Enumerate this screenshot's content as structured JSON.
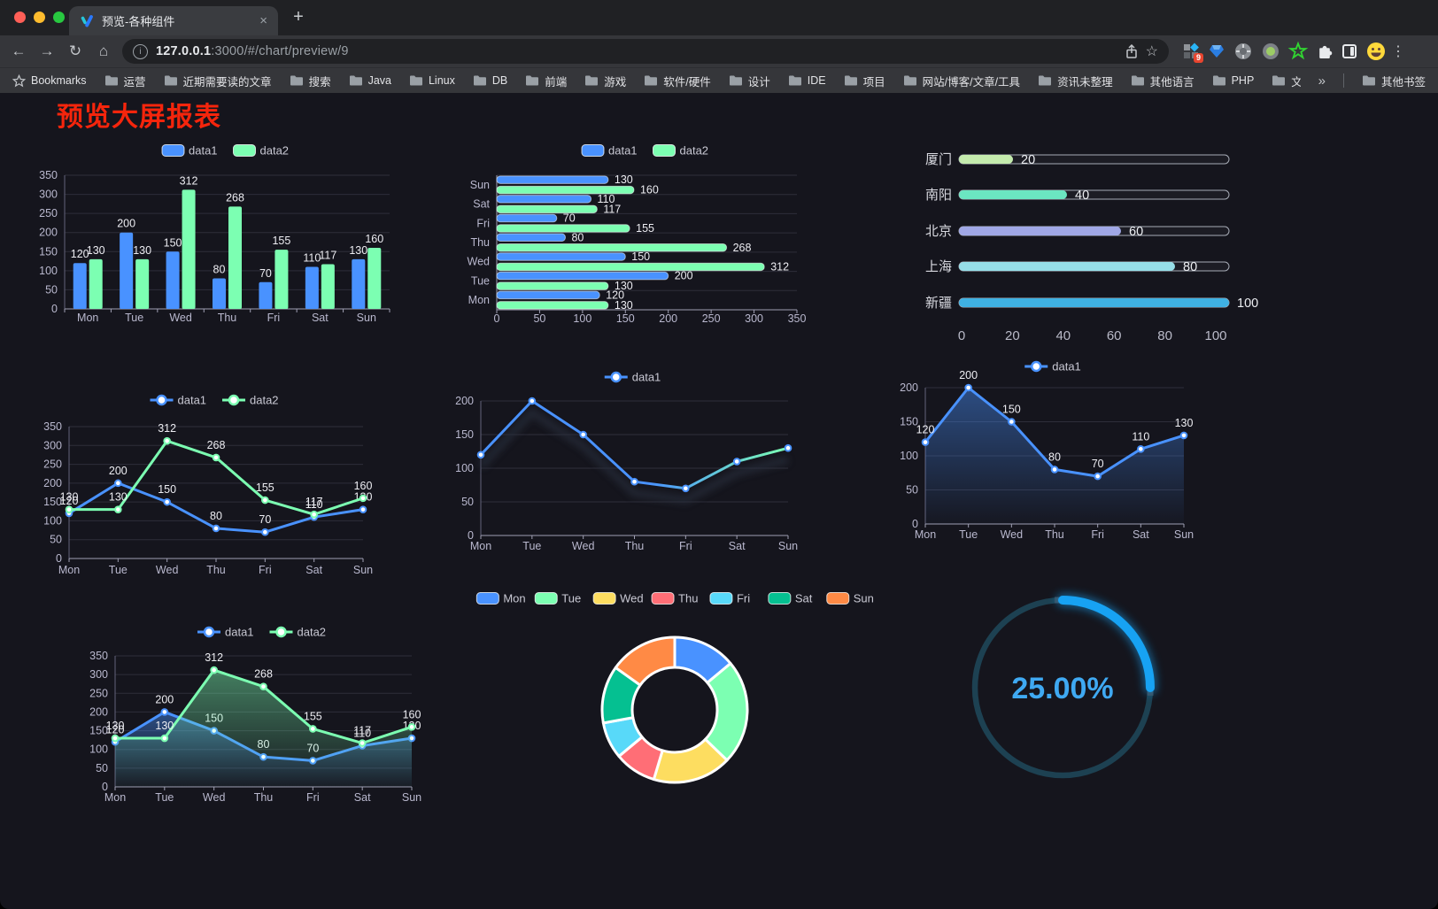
{
  "browser": {
    "tab_title": "预览-各种组件",
    "url_host": "127.0.0.1",
    "url_rest": ":3000/#/chart/preview/9",
    "bookmarks_label": "Bookmarks",
    "bookmarks": [
      "运营",
      "近期需要读的文章",
      "搜索",
      "Java",
      "Linux",
      "DB",
      "前端",
      "游戏",
      "软件/硬件",
      "设计",
      "IDE",
      "项目",
      "网站/博客/文章/工具",
      "资讯未整理",
      "其他语言",
      "PHP",
      "文件服务器"
    ],
    "other_bookmarks": "其他书签",
    "extension_badge": "9",
    "icons": {
      "back": "←",
      "forward": "→",
      "reload": "↻",
      "home": "⌂",
      "star": "☆",
      "menu": "⋮",
      "close": "×",
      "plus": "+",
      "overflow": "»",
      "info": "i"
    }
  },
  "page": {
    "title": "预览大屏报表",
    "title_color": "#f5250c",
    "background": "#15151d"
  },
  "theme": {
    "blue": "#4992ff",
    "green": "#7cffb2",
    "axis_label": "#b9b8ce",
    "grid_line": "#2e2e3a",
    "axis_line": "#a0a0b4",
    "value_label": "#ededf2"
  },
  "chart_data": [
    {
      "id": "bar-vertical",
      "type": "bar",
      "categories": [
        "Mon",
        "Tue",
        "Wed",
        "Thu",
        "Fri",
        "Sat",
        "Sun"
      ],
      "series": [
        {
          "name": "data1",
          "color": "#4992ff",
          "values": [
            120,
            200,
            150,
            80,
            70,
            110,
            130
          ]
        },
        {
          "name": "data2",
          "color": "#7cffb2",
          "values": [
            130,
            130,
            312,
            268,
            155,
            117,
            160
          ]
        }
      ],
      "ylim": [
        0,
        350
      ],
      "yticks": [
        0,
        50,
        100,
        150,
        200,
        250,
        300,
        350
      ],
      "labels": true,
      "legend_position": "top"
    },
    {
      "id": "bar-horizontal",
      "type": "bar-horizontal",
      "categories_top_to_bottom": [
        "Sun",
        "Sat",
        "Fri",
        "Thu",
        "Wed",
        "Tue",
        "Mon"
      ],
      "series": [
        {
          "name": "data1",
          "color": "#4992ff",
          "values": [
            130,
            110,
            70,
            80,
            150,
            200,
            120
          ]
        },
        {
          "name": "data2",
          "color": "#7cffb2",
          "values": [
            160,
            117,
            155,
            268,
            312,
            130,
            130
          ]
        }
      ],
      "xlim": [
        0,
        350
      ],
      "xticks": [
        0,
        50,
        100,
        150,
        200,
        250,
        300,
        350
      ],
      "labels": true,
      "legend_position": "top"
    },
    {
      "id": "city-progress",
      "type": "progress",
      "max": 100,
      "xticks": [
        0,
        20,
        40,
        60,
        80,
        100
      ],
      "items": [
        {
          "label": "厦门",
          "value": 20,
          "color": "#c4ebad"
        },
        {
          "label": "南阳",
          "value": 40,
          "color": "#6be6c1"
        },
        {
          "label": "北京",
          "value": 60,
          "color": "#a0a7e6"
        },
        {
          "label": "上海",
          "value": 80,
          "color": "#96dee8"
        },
        {
          "label": "新疆",
          "value": 100,
          "color": "#3fb1e3"
        }
      ]
    },
    {
      "id": "line-two-series",
      "type": "line",
      "categories": [
        "Mon",
        "Tue",
        "Wed",
        "Thu",
        "Fri",
        "Sat",
        "Sun"
      ],
      "series": [
        {
          "name": "data1",
          "color": "#4992ff",
          "values": [
            120,
            200,
            150,
            80,
            70,
            110,
            130
          ]
        },
        {
          "name": "data2",
          "color": "#7cffb2",
          "values": [
            130,
            130,
            312,
            268,
            155,
            117,
            160
          ]
        }
      ],
      "ylim": [
        0,
        350
      ],
      "yticks": [
        0,
        50,
        100,
        150,
        200,
        250,
        300,
        350
      ],
      "labels": true
    },
    {
      "id": "line-gradient",
      "type": "line",
      "categories": [
        "Mon",
        "Tue",
        "Wed",
        "Thu",
        "Fri",
        "Sat",
        "Sun"
      ],
      "series": [
        {
          "name": "data1",
          "color": "#4992ff",
          "gradient_to": "#7cffb2",
          "values": [
            120,
            200,
            150,
            80,
            70,
            110,
            130
          ]
        }
      ],
      "ylim": [
        0,
        200
      ],
      "yticks": [
        0,
        50,
        100,
        150,
        200
      ],
      "labels": false,
      "shadow": true
    },
    {
      "id": "line-area",
      "type": "line",
      "categories": [
        "Mon",
        "Tue",
        "Wed",
        "Thu",
        "Fri",
        "Sat",
        "Sun"
      ],
      "series": [
        {
          "name": "data1",
          "color": "#4992ff",
          "area": true,
          "values": [
            120,
            200,
            150,
            80,
            70,
            110,
            130
          ]
        }
      ],
      "ylim": [
        0,
        200
      ],
      "yticks": [
        0,
        50,
        100,
        150,
        200
      ],
      "labels": true
    },
    {
      "id": "line-two-area",
      "type": "line",
      "categories": [
        "Mon",
        "Tue",
        "Wed",
        "Thu",
        "Fri",
        "Sat",
        "Sun"
      ],
      "series": [
        {
          "name": "data1",
          "color": "#4992ff",
          "area": true,
          "values": [
            120,
            200,
            150,
            80,
            70,
            110,
            130
          ]
        },
        {
          "name": "data2",
          "color": "#7cffb2",
          "area": true,
          "values": [
            130,
            130,
            312,
            268,
            155,
            117,
            160
          ]
        }
      ],
      "ylim": [
        0,
        350
      ],
      "yticks": [
        0,
        50,
        100,
        150,
        200,
        250,
        300,
        350
      ],
      "labels": true
    },
    {
      "id": "donut",
      "type": "pie",
      "labels": [
        "Mon",
        "Tue",
        "Wed",
        "Thu",
        "Fri",
        "Sat",
        "Sun"
      ],
      "values": [
        120,
        200,
        150,
        80,
        70,
        110,
        130
      ],
      "colors": [
        "#4992ff",
        "#7cffb2",
        "#fddd60",
        "#ff6e76",
        "#58d9f9",
        "#05c091",
        "#ff8a45"
      ],
      "legend_position": "top"
    },
    {
      "id": "gauge",
      "type": "gauge",
      "percent": 25,
      "label": "25.00%",
      "progress_color": "#17a2f3",
      "track_color": "#1d4152",
      "text_color": "#3fa9f2"
    }
  ]
}
